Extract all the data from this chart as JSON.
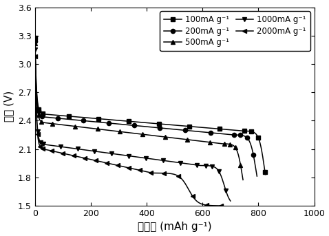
{
  "title": "",
  "xlabel_cn": "比容量",
  "xlabel_en": " (mAh g⁻¹)",
  "ylabel_cn": "电压",
  "ylabel_en": " (V)",
  "xlim": [
    0,
    1000
  ],
  "ylim": [
    1.5,
    3.6
  ],
  "xticks": [
    0,
    200,
    400,
    600,
    800,
    1000
  ],
  "yticks": [
    1.5,
    1.8,
    2.1,
    2.4,
    2.7,
    3.0,
    3.3,
    3.6
  ],
  "series": [
    {
      "label": "100mA g⁻¹",
      "marker": "s",
      "start_v": 3.28,
      "plateau_v": 2.47,
      "plateau_slope": -0.00025,
      "drop_start": 745,
      "capacity_end": 825,
      "drop_shape": 0.12
    },
    {
      "label": "200mA g⁻¹",
      "marker": "o",
      "start_v": 3.24,
      "plateau_v": 2.44,
      "plateau_slope": -0.00028,
      "drop_start": 710,
      "capacity_end": 795,
      "drop_shape": 0.12
    },
    {
      "label": "500mA g⁻¹",
      "marker": "^",
      "start_v": 3.22,
      "plateau_v": 2.38,
      "plateau_slope": -0.00035,
      "drop_start": 670,
      "capacity_end": 745,
      "drop_shape": 0.12
    },
    {
      "label": "1000mA g⁻¹",
      "marker": "v",
      "start_v": 3.15,
      "plateau_v": 2.15,
      "plateau_slope": -0.0004,
      "drop_start": 590,
      "capacity_end": 700,
      "drop_shape": 0.1
    },
    {
      "label": "2000mA g⁻¹",
      "marker": "<",
      "start_v": 3.08,
      "plateau_v": 2.1,
      "plateau_slope": -0.00065,
      "drop_start": 420,
      "capacity_end": 670,
      "drop_shape": 0.065
    }
  ],
  "legend_fontsize": 8.5,
  "axis_fontsize": 11,
  "tick_fontsize": 9,
  "background": "white"
}
